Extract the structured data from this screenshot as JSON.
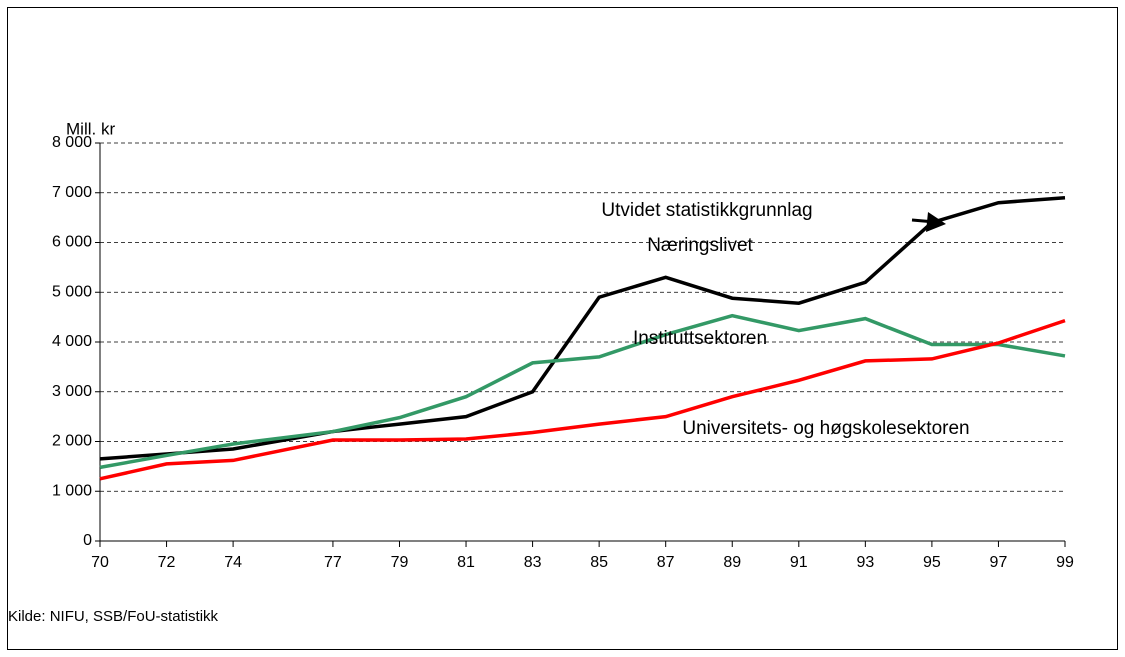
{
  "chart_data": {
    "type": "line",
    "y_label": "Mill. kr",
    "source": "Kilde: NIFU, SSB/FoU-statistikk",
    "annotation": "Utvidet statistikkgrunnlag",
    "x": [
      70,
      72,
      74,
      77,
      79,
      81,
      83,
      85,
      87,
      89,
      91,
      93,
      95,
      97,
      99
    ],
    "xlim": [
      70,
      99
    ],
    "xticks": [
      70,
      72,
      74,
      77,
      79,
      81,
      83,
      85,
      87,
      89,
      91,
      93,
      95,
      97,
      99
    ],
    "ylim": [
      0,
      8000
    ],
    "yticks": [
      0,
      {
        "value": 1000,
        "label": "1 000"
      },
      {
        "value": 2000,
        "label": "2 000"
      },
      {
        "value": 3000,
        "label": "3 000"
      },
      {
        "value": 4000,
        "label": "4 000"
      },
      {
        "value": 5000,
        "label": "5 000"
      },
      {
        "value": 6000,
        "label": "6 000"
      },
      {
        "value": 7000,
        "label": "7 000"
      },
      {
        "value": 8000,
        "label": "8 000"
      }
    ],
    "grid": true,
    "series": [
      {
        "name": "Næringslivet",
        "color": "#000000",
        "values": [
          1650,
          1750,
          1850,
          2200,
          2350,
          2500,
          3000,
          4900,
          5300,
          4880,
          4780,
          5200,
          6400,
          6800,
          6900
        ]
      },
      {
        "name": "Instituttsektoren",
        "color": "#339966",
        "values": [
          1480,
          1720,
          1950,
          2200,
          2480,
          2900,
          3580,
          3700,
          4150,
          4530,
          4230,
          4470,
          3950,
          3950,
          3720
        ]
      },
      {
        "name": "Universitets- og høgskolesektoren",
        "color": "#ff0000",
        "values": [
          1250,
          1550,
          1620,
          2030,
          2030,
          2050,
          2180,
          2350,
          2500,
          2900,
          3230,
          3620,
          3660,
          3980,
          4430
        ]
      }
    ]
  }
}
